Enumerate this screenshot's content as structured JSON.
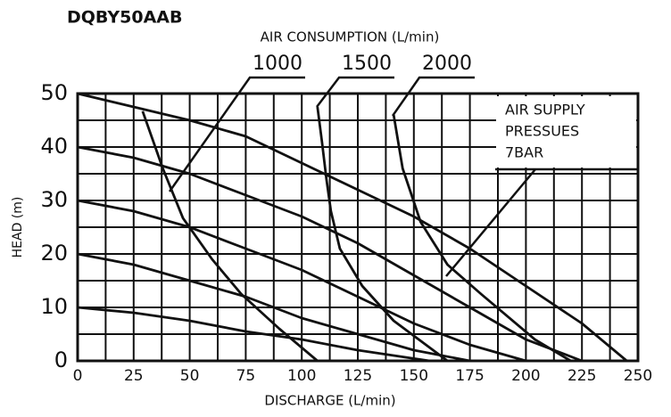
{
  "chart_data": {
    "type": "line",
    "title": "DQBY50AAB",
    "subtitle": "AIR CONSUMPTION (L/min)",
    "xlabel": "DISCHARGE (L/min)",
    "ylabel": "HEAD (m)",
    "annotation": [
      "AIR SUPPLY",
      "PRESSUES"
    ],
    "xlim": [
      0,
      250
    ],
    "ylim": [
      0,
      50
    ],
    "xticks": [
      0,
      25,
      50,
      75,
      100,
      125,
      150,
      175,
      200,
      225,
      250
    ],
    "yticks": [
      0,
      10,
      20,
      30,
      40,
      50
    ],
    "xgrid": [
      0,
      12.5,
      25,
      37.5,
      50,
      62.5,
      75,
      87.5,
      100,
      112.5,
      125,
      137.5,
      150,
      162.5,
      175,
      187.5,
      200,
      212.5,
      225,
      237.5,
      250
    ],
    "ygrid": [
      0,
      5,
      10,
      15,
      20,
      25,
      30,
      35,
      40,
      45,
      50
    ],
    "grid": true,
    "color": "#111111",
    "series": [
      {
        "name": "7BAR",
        "x": [
          0,
          25,
          50,
          75,
          100,
          125,
          150,
          175,
          200,
          225,
          245
        ],
        "values": [
          50,
          47.5,
          45,
          42,
          37,
          32,
          27,
          21,
          14,
          7,
          0
        ]
      },
      {
        "x": [
          0,
          25,
          50,
          75,
          100,
          125,
          150,
          175,
          200,
          225
        ],
        "values": [
          40,
          38,
          35,
          31,
          27,
          22,
          16,
          10,
          4,
          0
        ]
      },
      {
        "x": [
          0,
          25,
          50,
          75,
          100,
          125,
          150,
          175,
          200
        ],
        "values": [
          30,
          28,
          25,
          21,
          17,
          12,
          7,
          3,
          0
        ]
      },
      {
        "x": [
          0,
          25,
          50,
          75,
          100,
          125,
          150,
          175
        ],
        "values": [
          20,
          18,
          15,
          12,
          8,
          5,
          2,
          0
        ]
      },
      {
        "x": [
          0,
          25,
          50,
          75,
          100,
          125,
          157
        ],
        "values": [
          10,
          9,
          7.5,
          5.5,
          4,
          2,
          0
        ]
      },
      {
        "name": "1000",
        "x": [
          29,
          38,
          47,
          60,
          73,
          90,
          107
        ],
        "values": [
          46.7,
          36,
          26.7,
          19,
          12.5,
          6,
          0
        ]
      },
      {
        "name": "1500",
        "x": [
          107,
          109,
          111,
          113,
          117,
          127,
          141,
          165
        ],
        "values": [
          47.5,
          41,
          34,
          28,
          21,
          14,
          7.5,
          0
        ]
      },
      {
        "name": "2000",
        "x": [
          141,
          145,
          153,
          165,
          180,
          204,
          220
        ],
        "values": [
          46,
          36,
          26,
          18,
          12.5,
          4,
          0
        ]
      }
    ]
  }
}
